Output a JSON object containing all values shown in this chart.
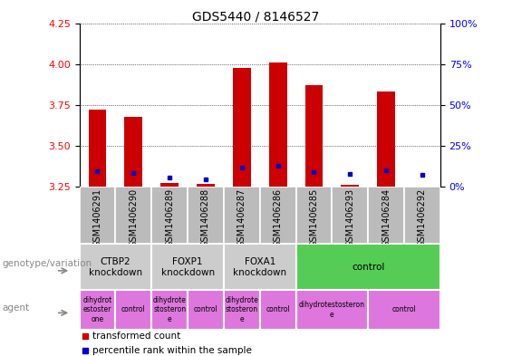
{
  "title": "GDS5440 / 8146527",
  "samples": [
    "GSM1406291",
    "GSM1406290",
    "GSM1406289",
    "GSM1406288",
    "GSM1406287",
    "GSM1406286",
    "GSM1406285",
    "GSM1406293",
    "GSM1406284",
    "GSM1406292"
  ],
  "transformed_counts": [
    3.72,
    3.68,
    3.275,
    3.268,
    3.975,
    4.01,
    3.87,
    3.265,
    3.83,
    3.25
  ],
  "percentile_ranks": [
    3.345,
    3.335,
    3.305,
    3.295,
    3.37,
    3.38,
    3.34,
    3.33,
    3.35,
    3.325
  ],
  "bar_bottom": 3.25,
  "ylim_left": [
    3.25,
    4.25
  ],
  "ylim_right": [
    0,
    100
  ],
  "yticks_left": [
    3.25,
    3.5,
    3.75,
    4.0,
    4.25
  ],
  "yticks_right": [
    0,
    25,
    50,
    75,
    100
  ],
  "bar_color": "#cc0000",
  "percentile_color": "#0000cc",
  "genotype_groups": [
    {
      "label": "CTBP2\nknockdown",
      "start": 0,
      "end": 2,
      "color": "#cccccc"
    },
    {
      "label": "FOXP1\nknockdown",
      "start": 2,
      "end": 4,
      "color": "#cccccc"
    },
    {
      "label": "FOXA1\nknockdown",
      "start": 4,
      "end": 6,
      "color": "#cccccc"
    },
    {
      "label": "control",
      "start": 6,
      "end": 10,
      "color": "#55cc55"
    }
  ],
  "agent_groups": [
    {
      "label": "dihydrot\nestoster\none",
      "start": 0,
      "end": 1,
      "color": "#dd77dd"
    },
    {
      "label": "control",
      "start": 1,
      "end": 2,
      "color": "#dd77dd"
    },
    {
      "label": "dihydrote\nstosteron\ne",
      "start": 2,
      "end": 3,
      "color": "#dd77dd"
    },
    {
      "label": "control",
      "start": 3,
      "end": 4,
      "color": "#dd77dd"
    },
    {
      "label": "dihydrote\nstosteron\ne",
      "start": 4,
      "end": 5,
      "color": "#dd77dd"
    },
    {
      "label": "control",
      "start": 5,
      "end": 6,
      "color": "#dd77dd"
    },
    {
      "label": "dihydrotestosteron\ne",
      "start": 6,
      "end": 8,
      "color": "#dd77dd"
    },
    {
      "label": "control",
      "start": 8,
      "end": 10,
      "color": "#dd77dd"
    }
  ],
  "legend_red_label": "transformed count",
  "legend_blue_label": "percentile rank within the sample",
  "label_genotype": "genotype/variation",
  "label_agent": "agent",
  "sample_bg": "#bbbbbb",
  "plot_bg": "#ffffff"
}
